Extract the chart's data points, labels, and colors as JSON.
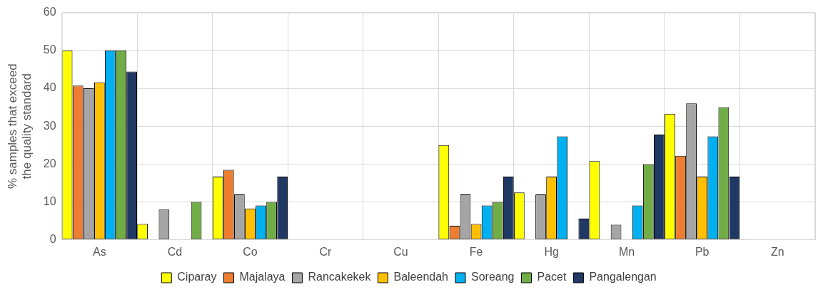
{
  "chart_data": {
    "type": "bar",
    "ylabel": "% samples that exceed the quality standard",
    "categories": [
      "As",
      "Cd",
      "Co",
      "Cr",
      "Cu",
      "Fe",
      "Hg",
      "Mn",
      "Pb",
      "Zn"
    ],
    "series": [
      {
        "name": "Ciparay",
        "color": "#ffff00",
        "values": [
          50,
          4.2,
          16.7,
          0,
          0,
          25,
          12.5,
          20.8,
          33.3,
          0
        ]
      },
      {
        "name": "Majalaya",
        "color": "#ed7d31",
        "values": [
          40.7,
          0,
          18.5,
          0,
          0,
          3.7,
          0,
          0,
          22.2,
          0
        ]
      },
      {
        "name": "Rancakekek",
        "color": "#a5a5a5",
        "values": [
          40,
          8,
          12,
          0,
          0,
          12,
          12,
          4,
          36,
          0
        ]
      },
      {
        "name": "Baleendah",
        "color": "#ffc000",
        "values": [
          41.6,
          0,
          8.3,
          0,
          0,
          4.2,
          16.7,
          0,
          16.7,
          0
        ]
      },
      {
        "name": "Soreang",
        "color": "#00b0f0",
        "values": [
          50,
          0,
          9.1,
          0,
          0,
          9.1,
          27.3,
          9.1,
          27.3,
          0
        ]
      },
      {
        "name": "Pacet",
        "color": "#70ad47",
        "values": [
          50,
          10,
          10,
          0,
          0,
          10,
          0,
          20,
          35,
          0
        ]
      },
      {
        "name": "Pangalengan",
        "color": "#203864",
        "values": [
          44.4,
          0,
          16.7,
          0,
          0,
          16.7,
          5.6,
          27.8,
          16.7,
          0
        ]
      }
    ],
    "ylim": [
      0,
      60
    ],
    "yticks": [
      0,
      10,
      20,
      30,
      40,
      50,
      60
    ],
    "grid": true,
    "legend": "bottom"
  }
}
